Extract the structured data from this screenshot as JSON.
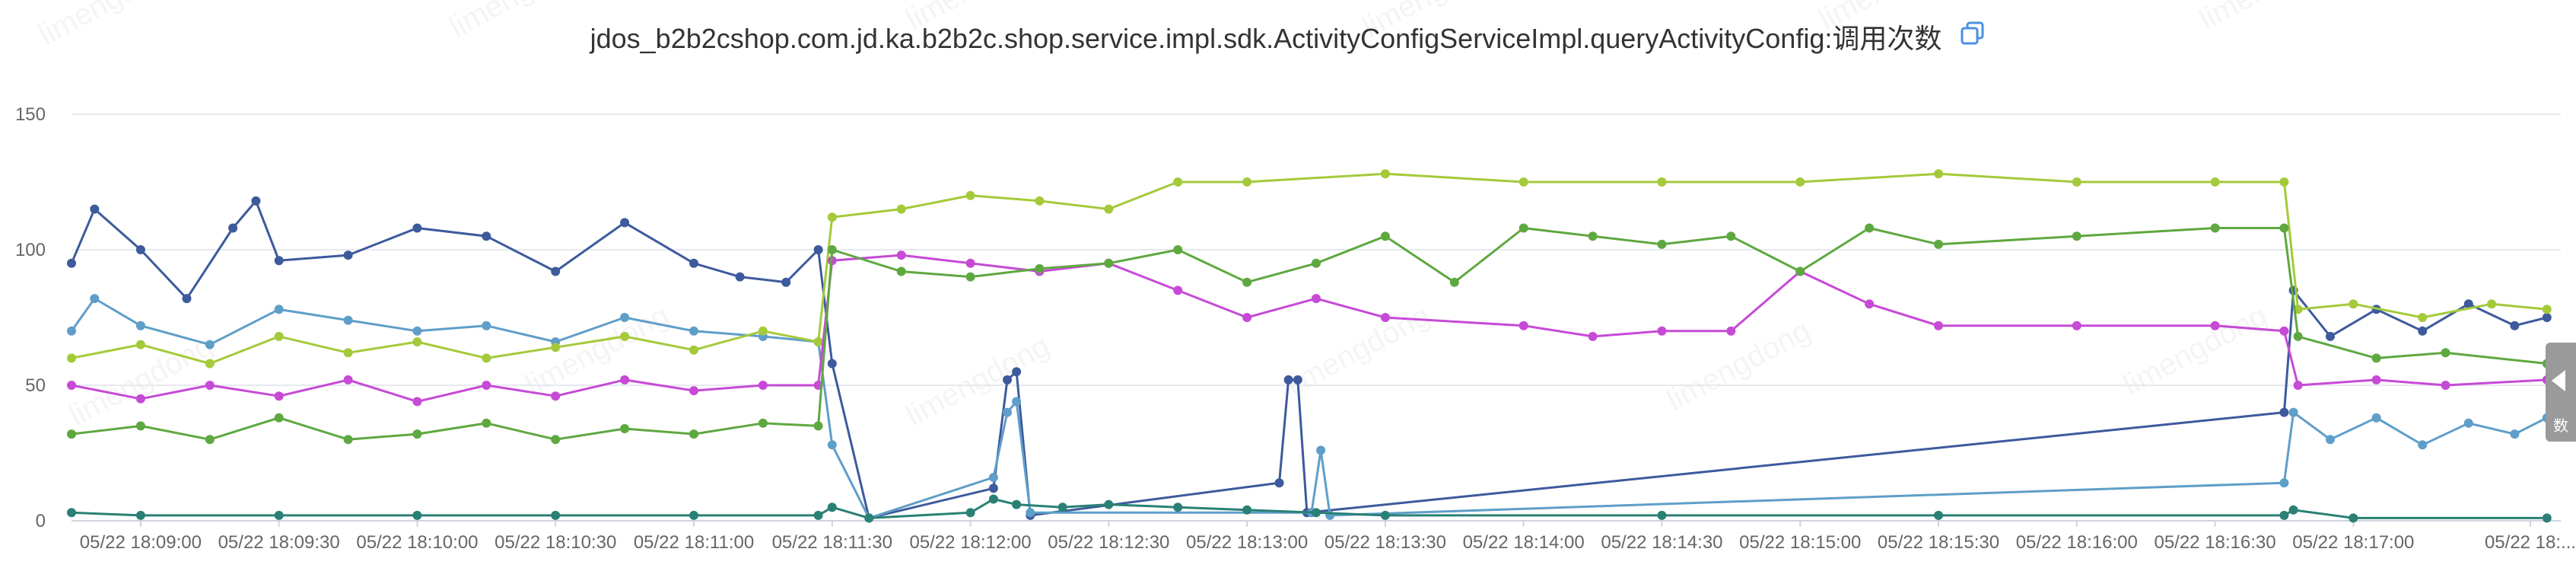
{
  "title": "jdos_b2b2cshop.com.jd.ka.b2b2c.shop.service.impl.sdk.ActivityConfigServiceImpl.queryActivityConfig:调用次数",
  "watermark": "limengdong",
  "side_tab": {
    "label": "数"
  },
  "icons": {
    "copy": "copy-icon"
  },
  "chart_data": {
    "type": "line",
    "title": "jdos_b2b2cshop.com.jd.ka.b2b2c.shop.service.impl.sdk.ActivityConfigServiceImpl.queryActivityConfig:调用次数",
    "xlabel": "",
    "ylabel": "",
    "ylim": [
      0,
      150
    ],
    "yticks": [
      0,
      50,
      100,
      150
    ],
    "xrange": [
      "18:08:45",
      "18:17:45"
    ],
    "xticks": [
      "05/22 18:09:00",
      "05/22 18:09:30",
      "05/22 18:10:00",
      "05/22 18:10:30",
      "05/22 18:11:00",
      "05/22 18:11:30",
      "05/22 18:12:00",
      "05/22 18:12:30",
      "05/22 18:13:00",
      "05/22 18:13:30",
      "05/22 18:14:00",
      "05/22 18:14:30",
      "05/22 18:15:00",
      "05/22 18:15:30",
      "05/22 18:16:00",
      "05/22 18:16:30",
      "05/22 18:17:00",
      "05/22 18:..."
    ],
    "grid": true,
    "legend": "none",
    "series": [
      {
        "color": "#3d5a9c",
        "points": [
          [
            "18:08:45",
            95
          ],
          [
            "18:08:50",
            115
          ],
          [
            "18:09:00",
            100
          ],
          [
            "18:09:10",
            82
          ],
          [
            "18:09:20",
            108
          ],
          [
            "18:09:25",
            118
          ],
          [
            "18:09:30",
            96
          ],
          [
            "18:09:45",
            98
          ],
          [
            "18:10:00",
            108
          ],
          [
            "18:10:15",
            105
          ],
          [
            "18:10:30",
            92
          ],
          [
            "18:10:45",
            110
          ],
          [
            "18:11:00",
            95
          ],
          [
            "18:11:10",
            90
          ],
          [
            "18:11:20",
            88
          ],
          [
            "18:11:27",
            100
          ],
          [
            "18:11:30",
            58
          ],
          [
            "18:11:38",
            1
          ],
          [
            "18:12:05",
            12
          ],
          [
            "18:12:08",
            52
          ],
          [
            "18:12:10",
            55
          ],
          [
            "18:12:13",
            2
          ],
          [
            "18:13:07",
            14
          ],
          [
            "18:13:09",
            52
          ],
          [
            "18:13:11",
            52
          ],
          [
            "18:13:13",
            3
          ],
          [
            "18:16:45",
            40
          ],
          [
            "18:16:47",
            85
          ],
          [
            "18:16:55",
            68
          ],
          [
            "18:17:05",
            78
          ],
          [
            "18:17:15",
            70
          ],
          [
            "18:17:25",
            80
          ],
          [
            "18:17:35",
            72
          ],
          [
            "18:17:42",
            75
          ]
        ]
      },
      {
        "color": "#5f9ec9",
        "points": [
          [
            "18:08:45",
            70
          ],
          [
            "18:08:50",
            82
          ],
          [
            "18:09:00",
            72
          ],
          [
            "18:09:15",
            65
          ],
          [
            "18:09:30",
            78
          ],
          [
            "18:09:45",
            74
          ],
          [
            "18:10:00",
            70
          ],
          [
            "18:10:15",
            72
          ],
          [
            "18:10:30",
            66
          ],
          [
            "18:10:45",
            75
          ],
          [
            "18:11:00",
            70
          ],
          [
            "18:11:15",
            68
          ],
          [
            "18:11:27",
            66
          ],
          [
            "18:11:30",
            28
          ],
          [
            "18:11:38",
            1
          ],
          [
            "18:12:05",
            16
          ],
          [
            "18:12:08",
            40
          ],
          [
            "18:12:10",
            44
          ],
          [
            "18:12:13",
            3
          ],
          [
            "18:13:14",
            3
          ],
          [
            "18:13:16",
            26
          ],
          [
            "18:13:18",
            2
          ],
          [
            "18:16:45",
            14
          ],
          [
            "18:16:47",
            40
          ],
          [
            "18:16:55",
            30
          ],
          [
            "18:17:05",
            38
          ],
          [
            "18:17:15",
            28
          ],
          [
            "18:17:25",
            36
          ],
          [
            "18:17:35",
            32
          ],
          [
            "18:17:42",
            38
          ]
        ]
      },
      {
        "color": "#a4ca3a",
        "points": [
          [
            "18:08:45",
            60
          ],
          [
            "18:09:00",
            65
          ],
          [
            "18:09:15",
            58
          ],
          [
            "18:09:30",
            68
          ],
          [
            "18:09:45",
            62
          ],
          [
            "18:10:00",
            66
          ],
          [
            "18:10:15",
            60
          ],
          [
            "18:10:30",
            64
          ],
          [
            "18:10:45",
            68
          ],
          [
            "18:11:00",
            63
          ],
          [
            "18:11:15",
            70
          ],
          [
            "18:11:27",
            66
          ],
          [
            "18:11:30",
            112
          ],
          [
            "18:11:45",
            115
          ],
          [
            "18:12:00",
            120
          ],
          [
            "18:12:15",
            118
          ],
          [
            "18:12:30",
            115
          ],
          [
            "18:12:45",
            125
          ],
          [
            "18:13:00",
            125
          ],
          [
            "18:13:30",
            128
          ],
          [
            "18:14:00",
            125
          ],
          [
            "18:14:30",
            125
          ],
          [
            "18:15:00",
            125
          ],
          [
            "18:15:30",
            128
          ],
          [
            "18:16:00",
            125
          ],
          [
            "18:16:30",
            125
          ],
          [
            "18:16:45",
            125
          ],
          [
            "18:16:48",
            78
          ],
          [
            "18:17:00",
            80
          ],
          [
            "18:17:15",
            75
          ],
          [
            "18:17:30",
            80
          ],
          [
            "18:17:42",
            78
          ]
        ]
      },
      {
        "color": "#c64ad6",
        "points": [
          [
            "18:08:45",
            50
          ],
          [
            "18:09:00",
            45
          ],
          [
            "18:09:15",
            50
          ],
          [
            "18:09:30",
            46
          ],
          [
            "18:09:45",
            52
          ],
          [
            "18:10:00",
            44
          ],
          [
            "18:10:15",
            50
          ],
          [
            "18:10:30",
            46
          ],
          [
            "18:10:45",
            52
          ],
          [
            "18:11:00",
            48
          ],
          [
            "18:11:15",
            50
          ],
          [
            "18:11:27",
            50
          ],
          [
            "18:11:30",
            96
          ],
          [
            "18:11:45",
            98
          ],
          [
            "18:12:00",
            95
          ],
          [
            "18:12:15",
            92
          ],
          [
            "18:12:30",
            95
          ],
          [
            "18:12:45",
            85
          ],
          [
            "18:13:00",
            75
          ],
          [
            "18:13:15",
            82
          ],
          [
            "18:13:30",
            75
          ],
          [
            "18:14:00",
            72
          ],
          [
            "18:14:15",
            68
          ],
          [
            "18:14:30",
            70
          ],
          [
            "18:14:45",
            70
          ],
          [
            "18:15:00",
            92
          ],
          [
            "18:15:15",
            80
          ],
          [
            "18:15:30",
            72
          ],
          [
            "18:16:00",
            72
          ],
          [
            "18:16:30",
            72
          ],
          [
            "18:16:45",
            70
          ],
          [
            "18:16:48",
            50
          ],
          [
            "18:17:05",
            52
          ],
          [
            "18:17:20",
            50
          ],
          [
            "18:17:42",
            52
          ]
        ]
      },
      {
        "color": "#5ea840",
        "points": [
          [
            "18:08:45",
            32
          ],
          [
            "18:09:00",
            35
          ],
          [
            "18:09:15",
            30
          ],
          [
            "18:09:30",
            38
          ],
          [
            "18:09:45",
            30
          ],
          [
            "18:10:00",
            32
          ],
          [
            "18:10:15",
            36
          ],
          [
            "18:10:30",
            30
          ],
          [
            "18:10:45",
            34
          ],
          [
            "18:11:00",
            32
          ],
          [
            "18:11:15",
            36
          ],
          [
            "18:11:27",
            35
          ],
          [
            "18:11:30",
            100
          ],
          [
            "18:11:45",
            92
          ],
          [
            "18:12:00",
            90
          ],
          [
            "18:12:15",
            93
          ],
          [
            "18:12:30",
            95
          ],
          [
            "18:12:45",
            100
          ],
          [
            "18:13:00",
            88
          ],
          [
            "18:13:15",
            95
          ],
          [
            "18:13:30",
            105
          ],
          [
            "18:13:45",
            88
          ],
          [
            "18:14:00",
            108
          ],
          [
            "18:14:15",
            105
          ],
          [
            "18:14:30",
            102
          ],
          [
            "18:14:45",
            105
          ],
          [
            "18:15:00",
            92
          ],
          [
            "18:15:15",
            108
          ],
          [
            "18:15:30",
            102
          ],
          [
            "18:16:00",
            105
          ],
          [
            "18:16:30",
            108
          ],
          [
            "18:16:45",
            108
          ],
          [
            "18:16:48",
            68
          ],
          [
            "18:17:05",
            60
          ],
          [
            "18:17:20",
            62
          ],
          [
            "18:17:42",
            58
          ]
        ]
      },
      {
        "color": "#2a8075",
        "points": [
          [
            "18:08:45",
            3
          ],
          [
            "18:09:00",
            2
          ],
          [
            "18:09:30",
            2
          ],
          [
            "18:10:00",
            2
          ],
          [
            "18:10:30",
            2
          ],
          [
            "18:11:00",
            2
          ],
          [
            "18:11:27",
            2
          ],
          [
            "18:11:30",
            5
          ],
          [
            "18:11:38",
            1
          ],
          [
            "18:12:00",
            3
          ],
          [
            "18:12:05",
            8
          ],
          [
            "18:12:10",
            6
          ],
          [
            "18:12:20",
            5
          ],
          [
            "18:12:30",
            6
          ],
          [
            "18:12:45",
            5
          ],
          [
            "18:13:00",
            4
          ],
          [
            "18:13:15",
            3
          ],
          [
            "18:13:30",
            2
          ],
          [
            "18:14:30",
            2
          ],
          [
            "18:15:30",
            2
          ],
          [
            "18:16:45",
            2
          ],
          [
            "18:16:47",
            4
          ],
          [
            "18:17:00",
            1
          ],
          [
            "18:17:42",
            1
          ]
        ]
      }
    ]
  }
}
